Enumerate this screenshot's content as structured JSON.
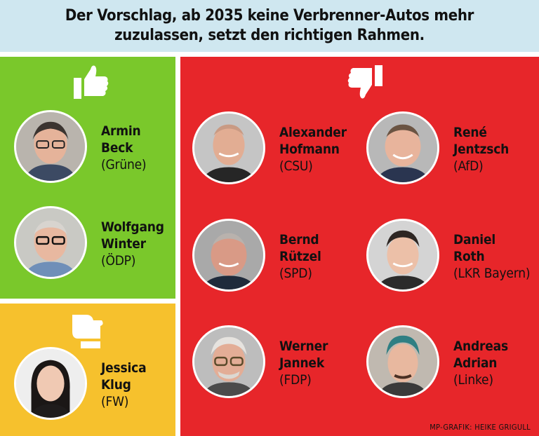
{
  "headline": "Der Vorschlag, ab 2035 keine Verbrenner-Autos mehr zuzulassen, setzt den richtigen Rahmen.",
  "colors": {
    "header_bg": "#cfe7f0",
    "agree": "#7ac82b",
    "neutral": "#f6c12d",
    "disagree": "#e7262a"
  },
  "icons": {
    "agree": "thumbs-up-icon",
    "neutral": "thumbs-sideways-icon",
    "disagree": "thumbs-down-icon"
  },
  "agree": [
    {
      "first": "Armin",
      "last": "Beck",
      "party": "(Grüne)"
    },
    {
      "first": "Wolfgang",
      "last": "Winter",
      "party": "(ÖDP)"
    }
  ],
  "neutral": [
    {
      "first": "Jessica",
      "last": "Klug",
      "party": "(FW)"
    }
  ],
  "disagree": [
    {
      "first": "Alexander",
      "last": "Hofmann",
      "party": "(CSU)"
    },
    {
      "first": "René",
      "last": "Jentzsch",
      "party": "(AfD)"
    },
    {
      "first": "Bernd",
      "last": "Rützel",
      "party": "(SPD)"
    },
    {
      "first": "Daniel",
      "last": "Roth",
      "party": "(LKR Bayern)"
    },
    {
      "first": "Werner",
      "last": "Jannek",
      "party": "(FDP)"
    },
    {
      "first": "Andreas",
      "last": "Adrian",
      "party": "(Linke)"
    }
  ],
  "credit": "MP-GRAFIK: HEIKE GRIGULL"
}
